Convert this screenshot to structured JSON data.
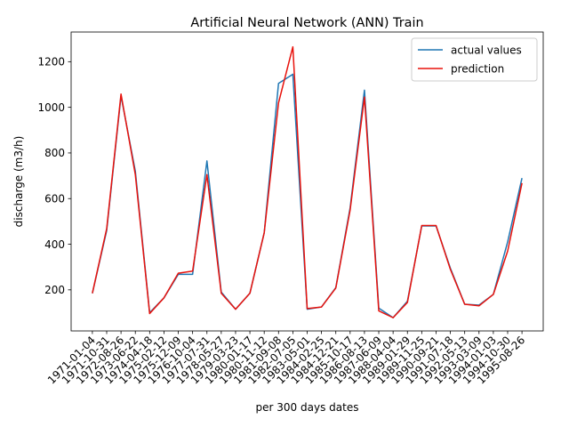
{
  "chart_data": {
    "type": "line",
    "title": "Artificial Neural Network (ANN) Train",
    "xlabel": "per 300 days dates",
    "ylabel": "discharge (m3/h)",
    "ylim": [
      20,
      1330
    ],
    "yticks": [
      200,
      400,
      600,
      800,
      1000,
      1200
    ],
    "grid": false,
    "legend_position": "top-right",
    "categories": [
      "1971-01-04",
      "1971-10-31",
      "1972-08-26",
      "1973-06-22",
      "1974-04-18",
      "1975-02-12",
      "1975-12-09",
      "1976-10-04",
      "1977-07-31",
      "1978-05-27",
      "1979-03-23",
      "1980-01-17",
      "1980-11-12",
      "1981-09-08",
      "1982-07-05",
      "1983-05-01",
      "1984-02-25",
      "1984-12-21",
      "1985-10-17",
      "1986-08-13",
      "1987-06-09",
      "1988-04-04",
      "1989-01-29",
      "1989-11-25",
      "1990-09-21",
      "1991-07-18",
      "1992-05-13",
      "1993-03-09",
      "1994-01-03",
      "1994-10-30",
      "1995-08-26"
    ],
    "series": [
      {
        "name": "actual values",
        "color": "#1f77b4",
        "values": [
          185,
          460,
          1050,
          720,
          100,
          165,
          268,
          268,
          765,
          190,
          115,
          185,
          450,
          1105,
          1145,
          115,
          125,
          210,
          560,
          1075,
          120,
          78,
          150,
          480,
          480,
          295,
          137,
          133,
          180,
          410,
          690
        ]
      },
      {
        "name": "prediction",
        "color": "#e8120c",
        "values": [
          185,
          468,
          1058,
          705,
          96,
          165,
          273,
          282,
          705,
          185,
          115,
          185,
          450,
          1020,
          1265,
          118,
          125,
          208,
          550,
          1045,
          108,
          78,
          145,
          482,
          482,
          290,
          137,
          130,
          180,
          370,
          668
        ]
      }
    ]
  }
}
